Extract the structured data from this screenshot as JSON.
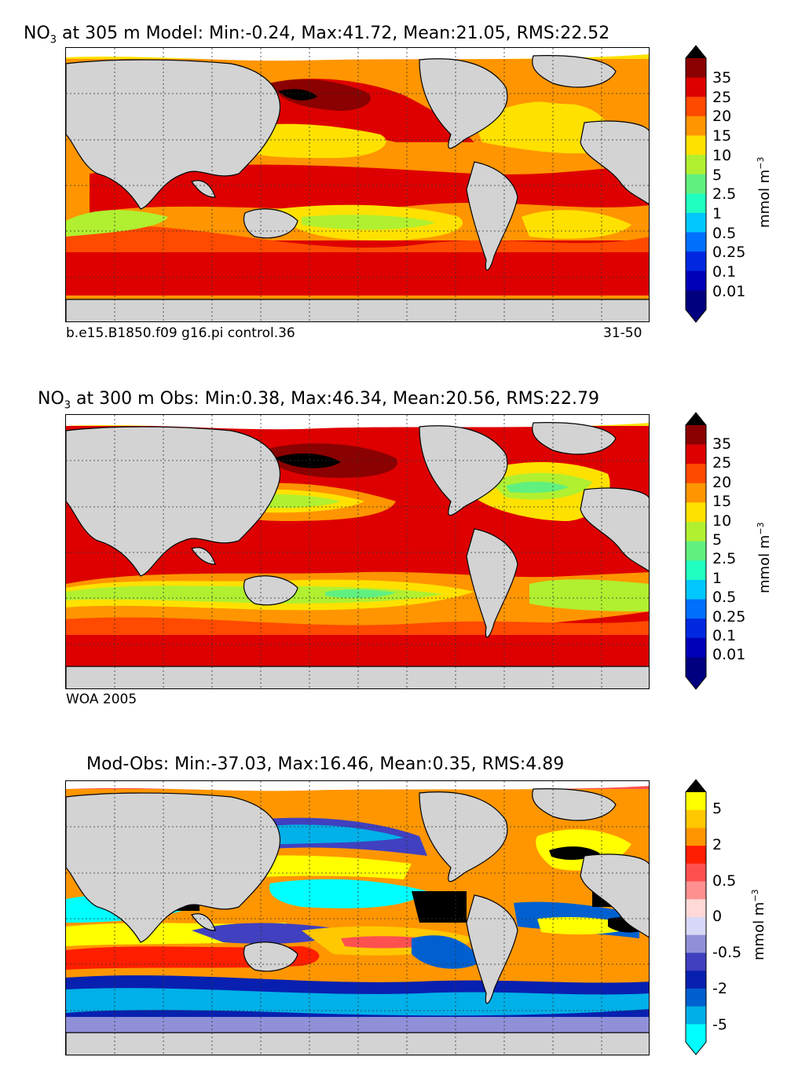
{
  "panels": [
    {
      "id": "model",
      "title_pre": "NO",
      "title_sub": "3",
      "title_post": " at 305 m Model: Min:-0.24, Max:41.72, Mean:21.05, RMS:22.52",
      "footer_left": "b.e15.B1850.f09 g16.pi control.36",
      "footer_right": "31-50"
    },
    {
      "id": "obs",
      "title_pre": "NO",
      "title_sub": "3",
      "title_post": " at 300 m Obs: Min:0.38, Max:46.34, Mean:20.56, RMS:22.79",
      "footer_left": "WOA 2005",
      "footer_right": ""
    },
    {
      "id": "diff",
      "title_pre": "",
      "title_sub": "",
      "title_post": "Mod-Obs: Min:-37.03, Max:16.46, Mean:0.35, RMS:4.89",
      "footer_left": "",
      "footer_right": ""
    }
  ],
  "colorbars": {
    "concentration": {
      "unit_base": "mmol m",
      "unit_exp": "−3",
      "labels": [
        "35",
        "25",
        "20",
        "15",
        "10",
        "5",
        "2.5",
        "1",
        "0.5",
        "0.25",
        "0.1",
        "0.01"
      ],
      "colors": [
        "#8b0000",
        "#de0000",
        "#ff4a00",
        "#ff9500",
        "#ffe100",
        "#b0f030",
        "#60f080",
        "#20ffc0",
        "#00c8ff",
        "#0070ff",
        "#0028e0",
        "#0000b8",
        "#000080"
      ]
    },
    "difference": {
      "unit_base": "mmol m",
      "unit_exp": "−3",
      "labels": [
        "5",
        "2",
        "0.5",
        "0",
        "-0.5",
        "-2",
        "-5"
      ],
      "colors": [
        "#ffff00",
        "#ffc800",
        "#ff9600",
        "#ff1e00",
        "#ff5050",
        "#ff9090",
        "#ffd8d8",
        "#d8d8f8",
        "#9090d8",
        "#4040c0",
        "#0820b0",
        "#0060d0",
        "#00b0e8",
        "#00ffff"
      ]
    }
  },
  "colors": {
    "land": "#d3d3d3",
    "sea_ice_missing": "#ffffff",
    "anomaly_black": "#000000"
  }
}
